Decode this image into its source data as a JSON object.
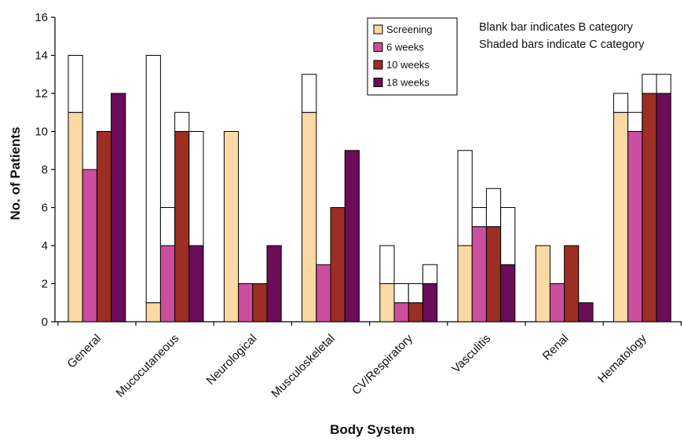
{
  "chart_data": {
    "type": "bar",
    "stacked_segments": true,
    "title": "",
    "xlabel": "Body System",
    "ylabel": "No. of Patients",
    "ylim": [
      0,
      16
    ],
    "yticks": [
      0,
      2,
      4,
      6,
      8,
      10,
      12,
      14,
      16
    ],
    "grid": false,
    "legend_position": "top-center",
    "categories": [
      "General",
      "Mucocutaneous",
      "Neurological",
      "Musculoskeletal",
      "CV/Respiratory",
      "Vasculitis",
      "Renal",
      "Hematology"
    ],
    "series": [
      {
        "name": "Screening",
        "color": "#FBD9A4",
        "c_values": [
          11,
          1,
          10,
          11,
          2,
          4,
          4,
          11
        ],
        "b_values": [
          3,
          13,
          0,
          2,
          2,
          5,
          0,
          1
        ]
      },
      {
        "name": "6 weeks",
        "color": "#CC4E9E",
        "c_values": [
          8,
          4,
          2,
          3,
          1,
          5,
          2,
          10
        ],
        "b_values": [
          0,
          2,
          0,
          0,
          1,
          1,
          0,
          1
        ]
      },
      {
        "name": "10 weeks",
        "color": "#9C2E24",
        "c_values": [
          10,
          10,
          2,
          6,
          1,
          5,
          4,
          12
        ],
        "b_values": [
          0,
          1,
          0,
          0,
          1,
          2,
          0,
          1
        ]
      },
      {
        "name": "18 weeks",
        "color": "#6B0D59",
        "c_values": [
          12,
          4,
          4,
          9,
          2,
          3,
          1,
          12
        ],
        "b_values": [
          0,
          6,
          0,
          0,
          1,
          3,
          0,
          1
        ]
      }
    ],
    "annotations": [
      "Blank bar indicates B category",
      "Shaded bars indicate C category"
    ]
  }
}
